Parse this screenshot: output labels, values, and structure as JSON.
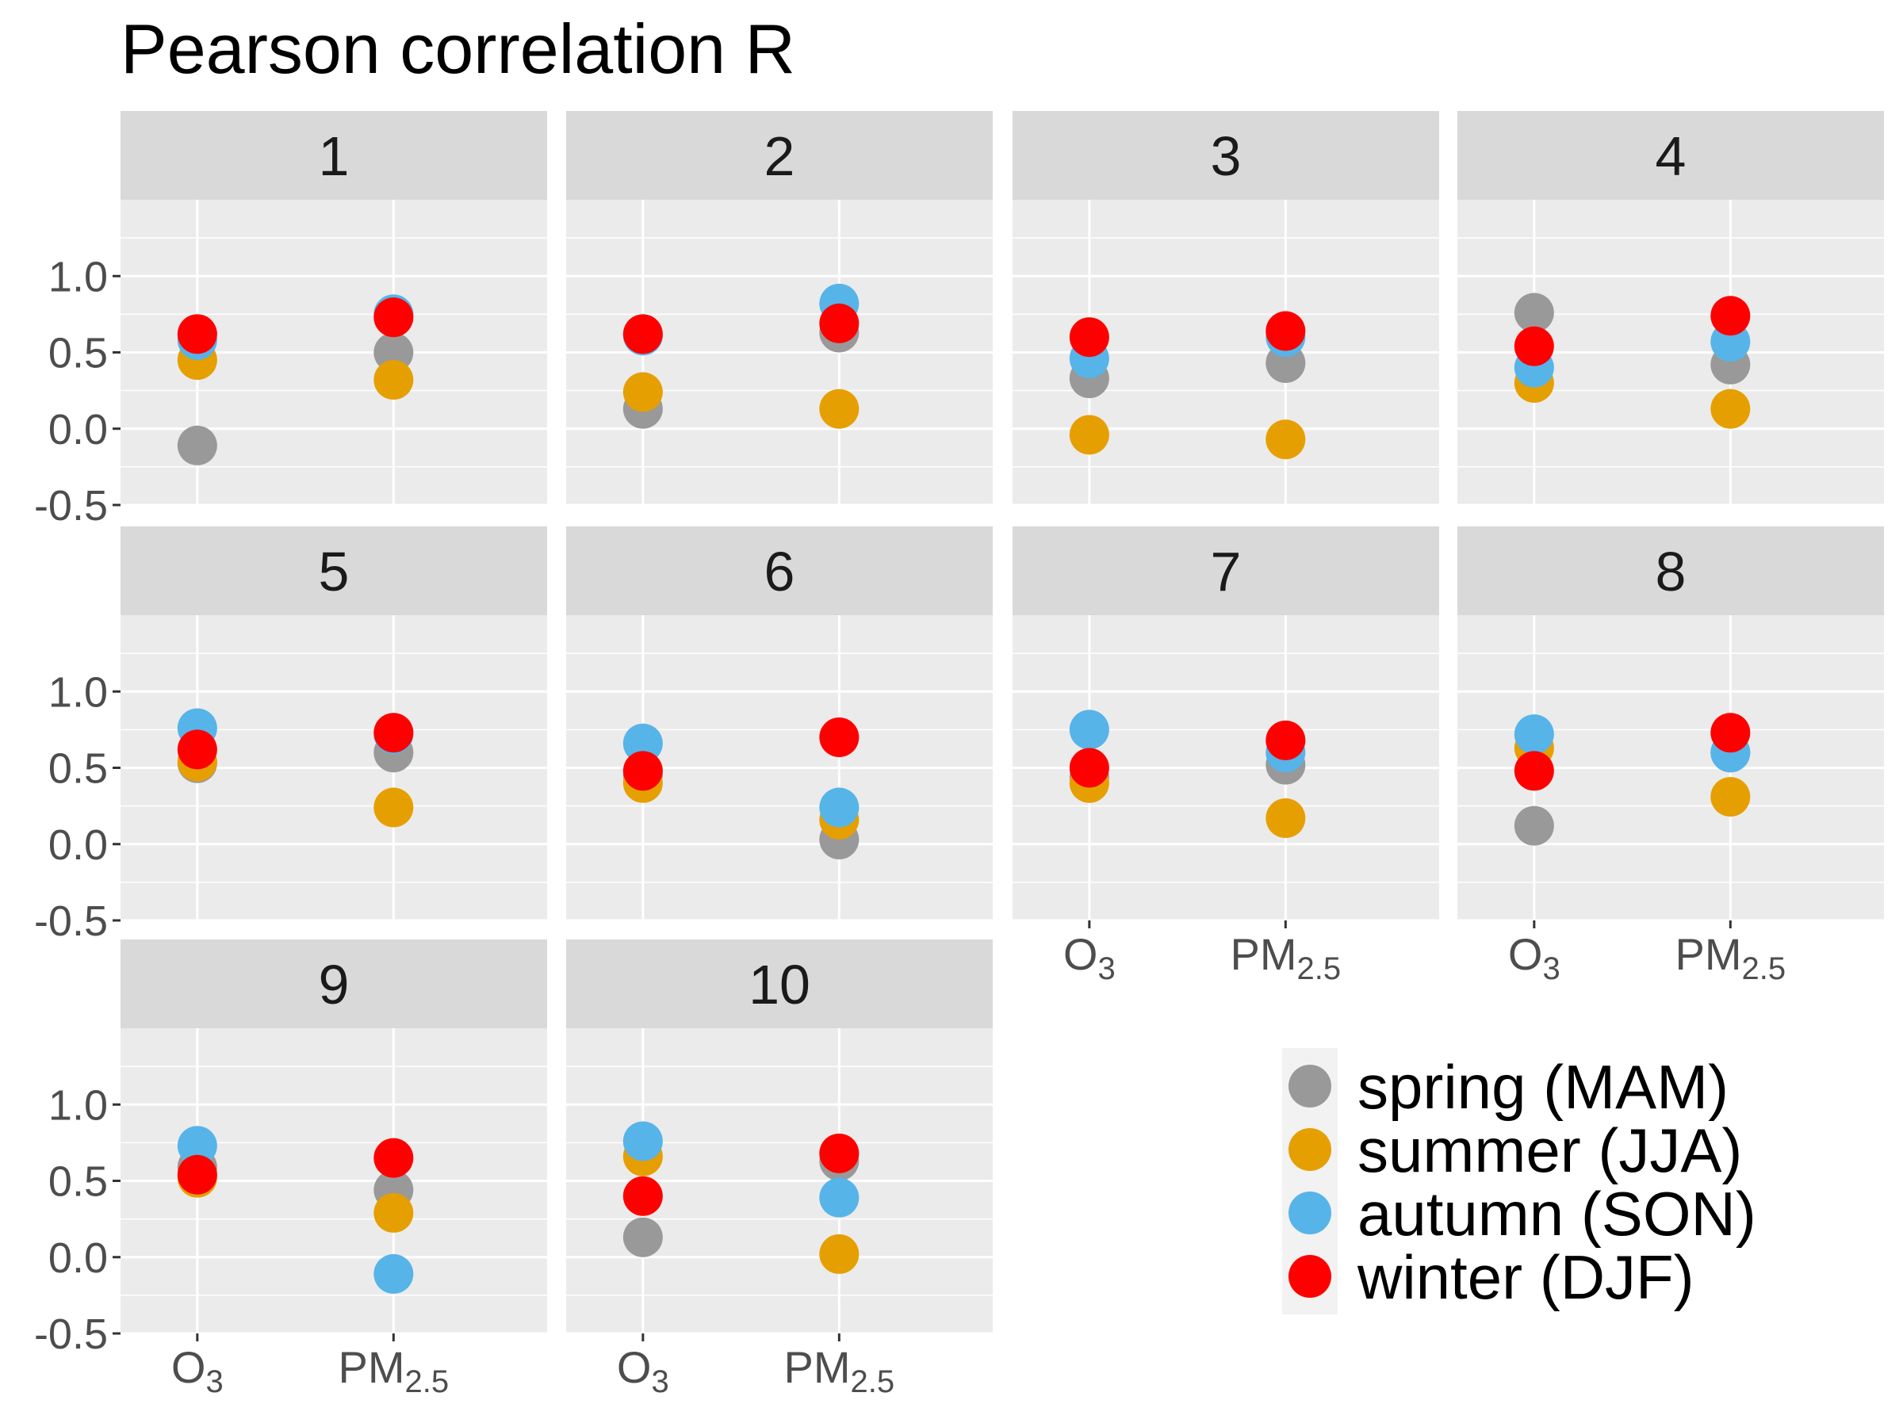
{
  "chart_data": {
    "type": "scatter",
    "title": "Pearson correlation R",
    "categories": [
      "O3",
      "PM2.5"
    ],
    "category_labels": [
      {
        "base": "O",
        "sub": "3"
      },
      {
        "base": "PM",
        "sub": "2.5"
      }
    ],
    "ylim": [
      -0.5,
      1.5
    ],
    "y_ticks": [
      "-0.5",
      "0.0",
      "0.5",
      "1.0"
    ],
    "y_tick_values": [
      -0.5,
      0.0,
      0.5,
      1.0
    ],
    "grid": true,
    "legend_position": "bottom-right",
    "series": [
      {
        "key": "spring",
        "name": "spring (MAM)",
        "color": "#999999"
      },
      {
        "key": "summer",
        "name": "summer (JJA)",
        "color": "#E69F00"
      },
      {
        "key": "autumn",
        "name": "autumn (SON)",
        "color": "#56B4E9"
      },
      {
        "key": "winter",
        "name": "winter (DJF)",
        "color": "#FF0000"
      }
    ],
    "panels": [
      {
        "label": "1",
        "values": {
          "spring": [
            -0.11,
            0.5
          ],
          "summer": [
            0.45,
            0.32
          ],
          "autumn": [
            0.58,
            0.75
          ],
          "winter": [
            0.62,
            0.73
          ]
        }
      },
      {
        "label": "2",
        "values": {
          "spring": [
            0.13,
            0.63
          ],
          "summer": [
            0.24,
            0.13
          ],
          "autumn": [
            0.61,
            0.82
          ],
          "winter": [
            0.62,
            0.69
          ]
        }
      },
      {
        "label": "3",
        "values": {
          "spring": [
            0.33,
            0.43
          ],
          "summer": [
            -0.04,
            -0.07
          ],
          "autumn": [
            0.46,
            0.6
          ],
          "winter": [
            0.6,
            0.64
          ]
        }
      },
      {
        "label": "4",
        "values": {
          "spring": [
            0.76,
            0.42
          ],
          "summer": [
            0.3,
            0.13
          ],
          "autumn": [
            0.4,
            0.57
          ],
          "winter": [
            0.54,
            0.74
          ]
        }
      },
      {
        "label": "5",
        "values": {
          "spring": [
            0.53,
            0.6
          ],
          "summer": [
            0.54,
            0.24
          ],
          "autumn": [
            0.76,
            0.72
          ],
          "winter": [
            0.62,
            0.73
          ]
        }
      },
      {
        "label": "6",
        "values": {
          "spring": [
            0.45,
            0.03
          ],
          "summer": [
            0.4,
            0.16
          ],
          "autumn": [
            0.66,
            0.24
          ],
          "winter": [
            0.48,
            0.7
          ]
        }
      },
      {
        "label": "7",
        "values": {
          "spring": [
            0.44,
            0.52
          ],
          "summer": [
            0.4,
            0.17
          ],
          "autumn": [
            0.75,
            0.6
          ],
          "winter": [
            0.5,
            0.68
          ]
        }
      },
      {
        "label": "8",
        "values": {
          "spring": [
            0.12,
            0.6
          ],
          "summer": [
            0.63,
            0.31
          ],
          "autumn": [
            0.72,
            0.6
          ],
          "winter": [
            0.48,
            0.73
          ]
        }
      },
      {
        "label": "9",
        "values": {
          "spring": [
            0.59,
            0.44
          ],
          "summer": [
            0.52,
            0.29
          ],
          "autumn": [
            0.73,
            -0.11
          ],
          "winter": [
            0.54,
            0.65
          ]
        }
      },
      {
        "label": "10",
        "values": {
          "spring": [
            0.13,
            0.63
          ],
          "summer": [
            0.66,
            0.02
          ],
          "autumn": [
            0.76,
            0.39
          ],
          "winter": [
            0.4,
            0.68
          ]
        }
      }
    ]
  }
}
